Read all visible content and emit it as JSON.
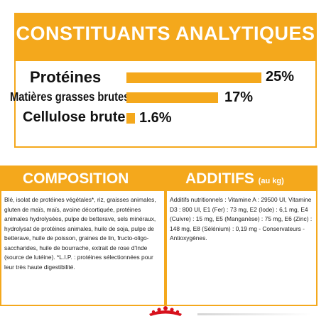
{
  "analytics": {
    "title": "CONSTITUANTS ANALYTIQUES",
    "rows": [
      {
        "label": "Protéines",
        "value": "25%",
        "fraction": 1.0
      },
      {
        "label": "Matières grasses brutes",
        "value": "17%",
        "fraction": 0.68
      },
      {
        "label": "Cellulose brute",
        "value": "1.6%",
        "fraction": 0.064
      }
    ]
  },
  "composition": {
    "title": "COMPOSITION",
    "text": "Blé, isolat de protéines végétales*, riz, graisses animales, gluten de maïs, maïs, avoine décortiquée, protéines animales hydrolysées, pulpe de betterave, sels minéraux, hydrolysat de protéines animales, huile de soja, pulpe de betterave, huile de poisson, graines de lin, fructo-oligo-saccharides, huile de bourrache, extrait de rose d'Inde (source de lutéine). *L.I.P. : protéines sélectionnées pour leur très haute digestibilité."
  },
  "additives": {
    "title": "ADDITIFS",
    "subtitle": "(au kg)",
    "text": "Additifs nutritionnels : Vitamine A : 29500 UI, Vitamine D3 : 800 UI, E1 (Fer) : 73 mg, E2 (Iode) : 6,1 mg, E4 (Cuivre) : 15 mg, E5 (Manganèse) : 75 mg, E6 (Zinc) : 148 mg, E8 (Sélénium) : 0,19 mg - Conservateurs - Antioxygènes."
  },
  "colors": {
    "accent": "#f4a81c",
    "logo_red": "#d7111c"
  },
  "logo": {
    "icon": "crown-icon"
  }
}
